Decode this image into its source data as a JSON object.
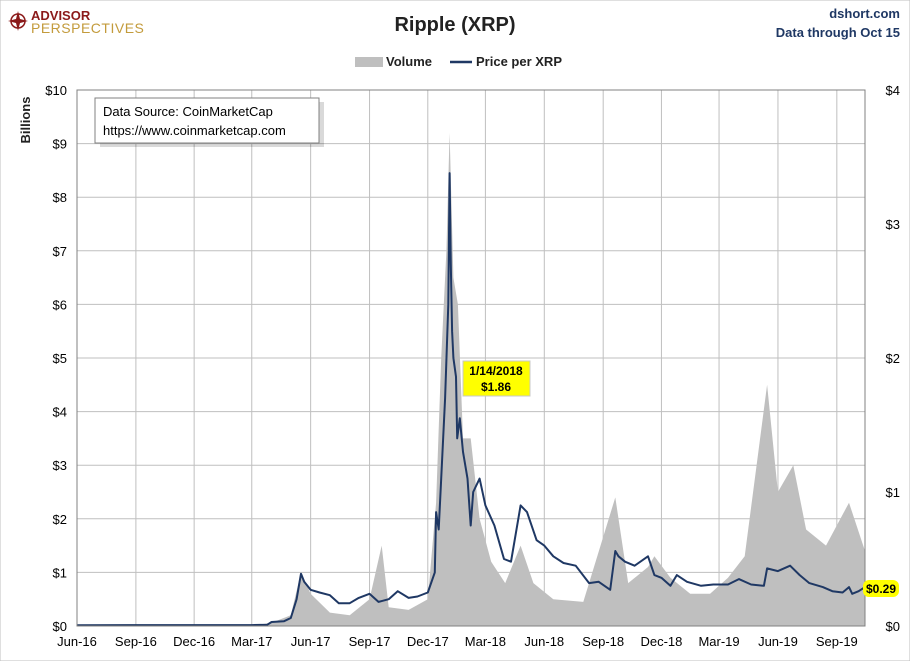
{
  "brand": {
    "line1": "ADVISOR",
    "line2": "PERSPECTIVES"
  },
  "source_site": "dshort.com",
  "data_through": "Data through Oct 15",
  "source_box": {
    "line1": "Data Source: CoinMarketCap",
    "line2": "https://www.coinmarketcap.com"
  },
  "colors": {
    "volume": "#bfbfbf",
    "price": "#1f3864",
    "highlight": "#ffff00",
    "grid": "#bfbfbf"
  },
  "chart_data": {
    "type": "area",
    "title": "Ripple (XRP)",
    "ylabel": "Billions",
    "legend": [
      "Volume",
      "Price per XRP"
    ],
    "legend_position": "top-center",
    "grid": true,
    "x_ticks": [
      "Jun-16",
      "Sep-16",
      "Dec-16",
      "Mar-17",
      "Jun-17",
      "Sep-17",
      "Dec-17",
      "Mar-18",
      "Jun-18",
      "Sep-18",
      "Dec-18",
      "Mar-19",
      "Jun-19",
      "Sep-19"
    ],
    "y_left": {
      "ylim": [
        0,
        10
      ],
      "ticks": [
        "$0",
        "$1",
        "$2",
        "$3",
        "$4",
        "$5",
        "$6",
        "$7",
        "$8",
        "$9",
        "$10"
      ]
    },
    "y_right": {
      "ylim": [
        0,
        4
      ],
      "ticks": [
        "$0",
        "$1",
        "$2",
        "$3",
        "$4"
      ]
    },
    "date_range": [
      "2016-06-01",
      "2019-10-15"
    ],
    "annotation": {
      "date": "1/14/2018",
      "value": "$1.86"
    },
    "last_value_label": "$0.29",
    "series": [
      {
        "name": "Price per XRP",
        "axis": "right",
        "points": [
          [
            "2016-06-01",
            0.006
          ],
          [
            "2016-09-01",
            0.0065
          ],
          [
            "2016-12-01",
            0.0065
          ],
          [
            "2017-03-01",
            0.007
          ],
          [
            "2017-03-25",
            0.009
          ],
          [
            "2017-04-01",
            0.03
          ],
          [
            "2017-04-20",
            0.035
          ],
          [
            "2017-05-01",
            0.06
          ],
          [
            "2017-05-10",
            0.2
          ],
          [
            "2017-05-17",
            0.39
          ],
          [
            "2017-05-22",
            0.33
          ],
          [
            "2017-06-01",
            0.27
          ],
          [
            "2017-06-15",
            0.25
          ],
          [
            "2017-07-01",
            0.23
          ],
          [
            "2017-07-15",
            0.17
          ],
          [
            "2017-08-01",
            0.17
          ],
          [
            "2017-08-15",
            0.21
          ],
          [
            "2017-09-01",
            0.24
          ],
          [
            "2017-09-15",
            0.18
          ],
          [
            "2017-10-01",
            0.2
          ],
          [
            "2017-10-15",
            0.26
          ],
          [
            "2017-11-01",
            0.21
          ],
          [
            "2017-11-15",
            0.22
          ],
          [
            "2017-12-01",
            0.25
          ],
          [
            "2017-12-12",
            0.4
          ],
          [
            "2017-12-14",
            0.85
          ],
          [
            "2017-12-18",
            0.72
          ],
          [
            "2017-12-22",
            1.1
          ],
          [
            "2017-12-28",
            1.7
          ],
          [
            "2018-01-02",
            2.4
          ],
          [
            "2018-01-04",
            3.38
          ],
          [
            "2018-01-06",
            2.7
          ],
          [
            "2018-01-08",
            2.2
          ],
          [
            "2018-01-10",
            2.0
          ],
          [
            "2018-01-14",
            1.86
          ],
          [
            "2018-01-16",
            1.4
          ],
          [
            "2018-01-20",
            1.55
          ],
          [
            "2018-01-25",
            1.3
          ],
          [
            "2018-02-01",
            1.1
          ],
          [
            "2018-02-06",
            0.75
          ],
          [
            "2018-02-10",
            1.0
          ],
          [
            "2018-02-20",
            1.1
          ],
          [
            "2018-03-01",
            0.9
          ],
          [
            "2018-03-15",
            0.75
          ],
          [
            "2018-03-30",
            0.5
          ],
          [
            "2018-04-10",
            0.48
          ],
          [
            "2018-04-25",
            0.9
          ],
          [
            "2018-05-05",
            0.85
          ],
          [
            "2018-05-20",
            0.64
          ],
          [
            "2018-06-01",
            0.6
          ],
          [
            "2018-06-15",
            0.52
          ],
          [
            "2018-07-01",
            0.47
          ],
          [
            "2018-07-20",
            0.45
          ],
          [
            "2018-08-10",
            0.32
          ],
          [
            "2018-08-25",
            0.33
          ],
          [
            "2018-09-12",
            0.27
          ],
          [
            "2018-09-20",
            0.56
          ],
          [
            "2018-09-25",
            0.52
          ],
          [
            "2018-10-05",
            0.48
          ],
          [
            "2018-10-20",
            0.45
          ],
          [
            "2018-11-10",
            0.52
          ],
          [
            "2018-11-20",
            0.38
          ],
          [
            "2018-12-01",
            0.36
          ],
          [
            "2018-12-15",
            0.3
          ],
          [
            "2018-12-25",
            0.38
          ],
          [
            "2019-01-10",
            0.33
          ],
          [
            "2019-02-01",
            0.3
          ],
          [
            "2019-02-20",
            0.31
          ],
          [
            "2019-03-15",
            0.31
          ],
          [
            "2019-04-01",
            0.35
          ],
          [
            "2019-04-20",
            0.31
          ],
          [
            "2019-05-10",
            0.3
          ],
          [
            "2019-05-15",
            0.43
          ],
          [
            "2019-06-01",
            0.41
          ],
          [
            "2019-06-20",
            0.45
          ],
          [
            "2019-07-05",
            0.38
          ],
          [
            "2019-07-20",
            0.32
          ],
          [
            "2019-08-10",
            0.29
          ],
          [
            "2019-08-25",
            0.26
          ],
          [
            "2019-09-10",
            0.25
          ],
          [
            "2019-09-20",
            0.29
          ],
          [
            "2019-09-25",
            0.24
          ],
          [
            "2019-10-05",
            0.26
          ],
          [
            "2019-10-15",
            0.29
          ]
        ]
      },
      {
        "name": "Volume",
        "axis": "left",
        "unit": "billions USD",
        "points": [
          [
            "2016-06-01",
            0.0
          ],
          [
            "2017-03-01",
            0.01
          ],
          [
            "2017-04-01",
            0.06
          ],
          [
            "2017-05-01",
            0.2
          ],
          [
            "2017-05-17",
            1.0
          ],
          [
            "2017-06-01",
            0.6
          ],
          [
            "2017-07-01",
            0.25
          ],
          [
            "2017-08-01",
            0.2
          ],
          [
            "2017-09-01",
            0.5
          ],
          [
            "2017-09-20",
            1.5
          ],
          [
            "2017-10-01",
            0.35
          ],
          [
            "2017-11-01",
            0.3
          ],
          [
            "2017-12-01",
            0.5
          ],
          [
            "2017-12-14",
            2.3
          ],
          [
            "2017-12-22",
            5.0
          ],
          [
            "2017-12-30",
            7.0
          ],
          [
            "2018-01-04",
            9.2
          ],
          [
            "2018-01-10",
            6.5
          ],
          [
            "2018-01-17",
            6.0
          ],
          [
            "2018-01-25",
            3.5
          ],
          [
            "2018-02-06",
            3.5
          ],
          [
            "2018-02-20",
            2.0
          ],
          [
            "2018-03-10",
            1.2
          ],
          [
            "2018-04-01",
            0.8
          ],
          [
            "2018-04-25",
            1.5
          ],
          [
            "2018-05-15",
            0.8
          ],
          [
            "2018-06-15",
            0.5
          ],
          [
            "2018-08-01",
            0.45
          ],
          [
            "2018-09-20",
            2.4
          ],
          [
            "2018-10-10",
            0.8
          ],
          [
            "2018-11-10",
            1.1
          ],
          [
            "2018-11-20",
            1.3
          ],
          [
            "2018-12-15",
            0.9
          ],
          [
            "2019-01-15",
            0.6
          ],
          [
            "2019-02-15",
            0.6
          ],
          [
            "2019-03-15",
            0.9
          ],
          [
            "2019-04-10",
            1.3
          ],
          [
            "2019-05-15",
            4.5
          ],
          [
            "2019-06-01",
            2.5
          ],
          [
            "2019-06-25",
            3.0
          ],
          [
            "2019-07-15",
            1.8
          ],
          [
            "2019-08-15",
            1.5
          ],
          [
            "2019-09-20",
            2.3
          ],
          [
            "2019-10-15",
            1.4
          ]
        ]
      }
    ]
  }
}
